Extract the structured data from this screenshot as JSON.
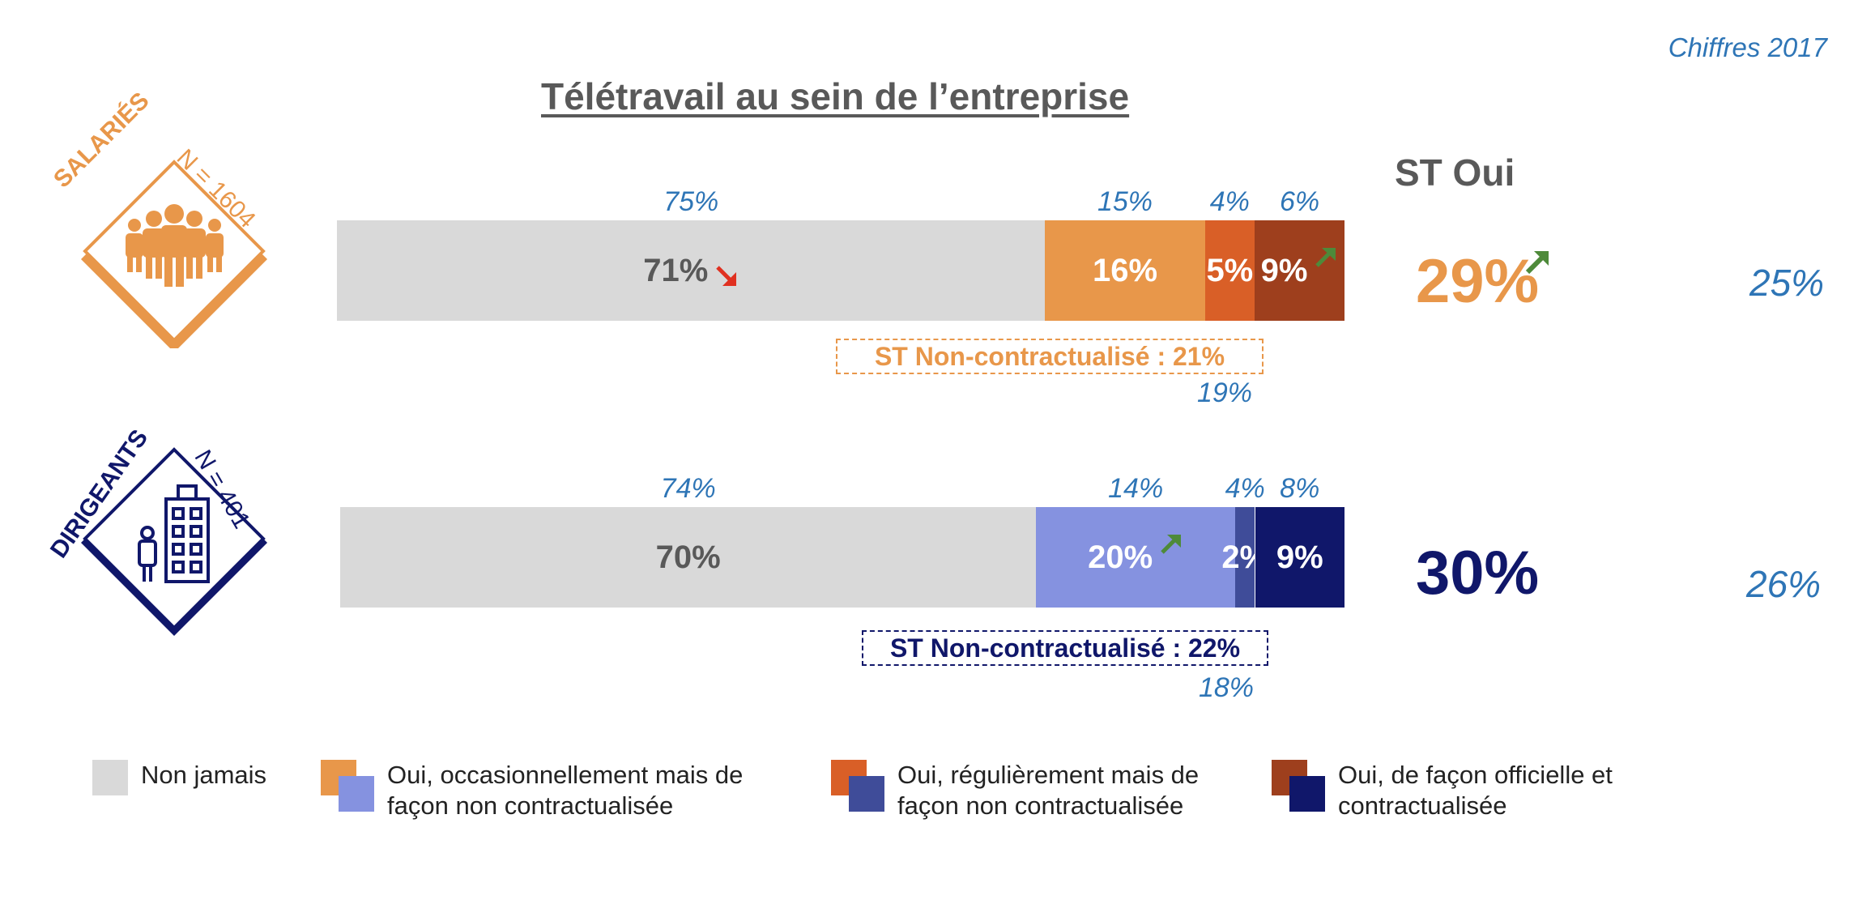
{
  "header": {
    "title": "Télétravail au sein de l’entreprise",
    "year_note": "Chiffres 2017",
    "st_oui_heading": "ST Oui"
  },
  "groups": [
    {
      "name": "SALARIÉS",
      "sample": "N = 1604",
      "color": "#e8974a"
    },
    {
      "name": "DIRIGEANTS",
      "sample": "N = 401",
      "color": "#1a1f6b"
    }
  ],
  "chart_data": {
    "type": "bar",
    "orientation": "horizontal",
    "stacked": true,
    "unit": "%",
    "categories": [
      "SALARIÉS",
      "DIRIGEANTS"
    ],
    "series": [
      {
        "name": "Non jamais",
        "values": [
          71,
          70
        ],
        "previous": [
          75,
          74
        ],
        "labels": [
          "71%",
          "70%"
        ],
        "previous_labels": [
          "75%",
          "74%"
        ]
      },
      {
        "name": "Oui, occasionnellement mais de façon non contractualisée",
        "values": [
          16,
          20
        ],
        "previous": [
          15,
          14
        ],
        "labels": [
          "16%",
          "20%"
        ],
        "previous_labels": [
          "15%",
          "14%"
        ]
      },
      {
        "name": "Oui, régulièrement mais de façon non contractualisée",
        "values": [
          5,
          2
        ],
        "previous": [
          4,
          4
        ],
        "labels": [
          "5%",
          "2%"
        ],
        "previous_labels": [
          "4%",
          "4%"
        ]
      },
      {
        "name": "Oui, de façon officielle et contractualisée",
        "values": [
          9,
          9
        ],
        "previous": [
          6,
          8
        ],
        "labels": [
          "9%",
          "9%"
        ],
        "previous_labels": [
          "6%",
          "8%"
        ]
      }
    ],
    "colors": {
      "SALARIÉS": [
        "#d9d9d9",
        "#e8974a",
        "#d95f27",
        "#9e3f1d"
      ],
      "DIRIGEANTS": [
        "#d9d9d9",
        "#8592e0",
        "#3f4c99",
        "#10176a"
      ]
    },
    "trend_arrows": [
      {
        "group": "SALARIÉS",
        "series": "Non jamais",
        "direction": "down",
        "color": "#e03020"
      },
      {
        "group": "SALARIÉS",
        "series": "Oui, de façon officielle et contractualisée",
        "direction": "up",
        "color": "#4e8a3a"
      },
      {
        "group": "DIRIGEANTS",
        "series": "Oui, occasionnellement mais de façon non contractualisée",
        "direction": "up",
        "color": "#4e8a3a"
      },
      {
        "group": "SALARIÉS",
        "series": "ST Oui",
        "direction": "up",
        "color": "#4e8a3a"
      }
    ],
    "st_non_contractualise": [
      {
        "group": "SALARIÉS",
        "label": "ST Non-contractualisé : 21%",
        "value": 21,
        "previous_label": "19%",
        "previous": 19,
        "color": "#e8974a"
      },
      {
        "group": "DIRIGEANTS",
        "label": "ST Non-contractualisé : 22%",
        "value": 22,
        "previous_label": "18%",
        "previous": 18,
        "color": "#10176a"
      }
    ],
    "st_oui": [
      {
        "group": "SALARIÉS",
        "label": "29%",
        "value": 29,
        "previous_label": "25%",
        "previous": 25,
        "color": "#e8974a"
      },
      {
        "group": "DIRIGEANTS",
        "label": "30%",
        "value": 30,
        "previous_label": "26%",
        "previous": 26,
        "color": "#10176a"
      }
    ],
    "legend": [
      {
        "label": "Non jamais",
        "colors": [
          "#d9d9d9"
        ]
      },
      {
        "label": "Oui, occasionnellement mais de façon non contractualisée",
        "line1": "Oui, occasionnellement mais de",
        "line2": "façon non contractualisée",
        "colors": [
          "#e8974a",
          "#8592e0"
        ]
      },
      {
        "label": "Oui, régulièrement mais de façon non contractualisée",
        "line1": "Oui, régulièrement mais de",
        "line2": "façon non contractualisée",
        "colors": [
          "#d95f27",
          "#3f4c99"
        ]
      },
      {
        "label": "Oui, de façon officielle et contractualisée",
        "line1": "Oui, de façon officielle et",
        "line2": "contractualisée",
        "colors": [
          "#9e3f1d",
          "#10176a"
        ]
      }
    ]
  }
}
